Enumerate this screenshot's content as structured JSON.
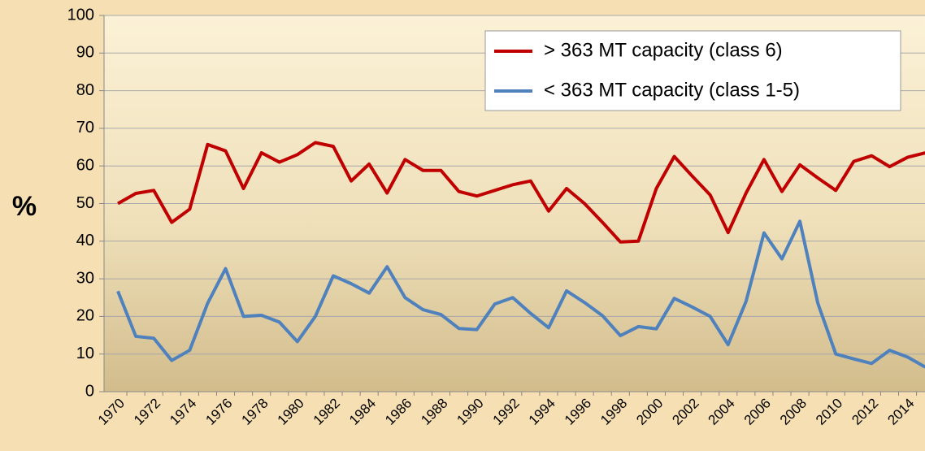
{
  "chart_data": {
    "type": "line",
    "y_label": "%",
    "categories": [
      "1970",
      null,
      "1972",
      null,
      "1974",
      null,
      "1976",
      null,
      "1978",
      null,
      "1980",
      null,
      "1982",
      null,
      "1984",
      null,
      "1986",
      null,
      "1988",
      null,
      "1990",
      null,
      "1992",
      null,
      "1994",
      null,
      "1996",
      null,
      "1998",
      null,
      "2000",
      null,
      "2002",
      null,
      "2004",
      null,
      "2006",
      null,
      "2008",
      null,
      "2010",
      null,
      "2012",
      null,
      "2014",
      null
    ],
    "series": [
      {
        "name": "> 363 MT capacity (class 6)",
        "color": "#c00000",
        "values": [
          50,
          52.7,
          53.5,
          45,
          48.5,
          65.7,
          64,
          54,
          63.5,
          61,
          63,
          66.2,
          65.2,
          56,
          60.5,
          52.8,
          61.7,
          58.8,
          58.8,
          53.2,
          52,
          53.5,
          55,
          56,
          48,
          54,
          50,
          45,
          39.8,
          40,
          54,
          62.5,
          57.3,
          52.3,
          42.3,
          52.8,
          61.7,
          53.2,
          60.3,
          56.8,
          53.5,
          61.2,
          62.7,
          59.8,
          62.3,
          63.5
        ]
      },
      {
        "name": "< 363 MT capacity (class 1-5)",
        "color": "#4f81bd",
        "values": [
          26.7,
          14.7,
          14.2,
          8.3,
          11,
          23.5,
          32.7,
          20,
          20.3,
          18.5,
          13.3,
          20,
          30.8,
          28.7,
          26.2,
          33.2,
          25,
          21.8,
          20.5,
          16.8,
          16.5,
          23.3,
          25,
          20.8,
          17,
          26.8,
          23.7,
          20.2,
          14.9,
          17.3,
          16.7,
          24.8,
          22.5,
          20,
          12.5,
          24,
          42.2,
          35.3,
          45.3,
          23.5,
          10,
          8.7,
          7.5,
          11,
          9.2,
          6.5
        ]
      }
    ],
    "ylim": [
      0,
      100
    ],
    "yticks": [
      0,
      10,
      20,
      30,
      40,
      50,
      60,
      70,
      80,
      90,
      100
    ],
    "grid": true,
    "legend": "top-right"
  }
}
